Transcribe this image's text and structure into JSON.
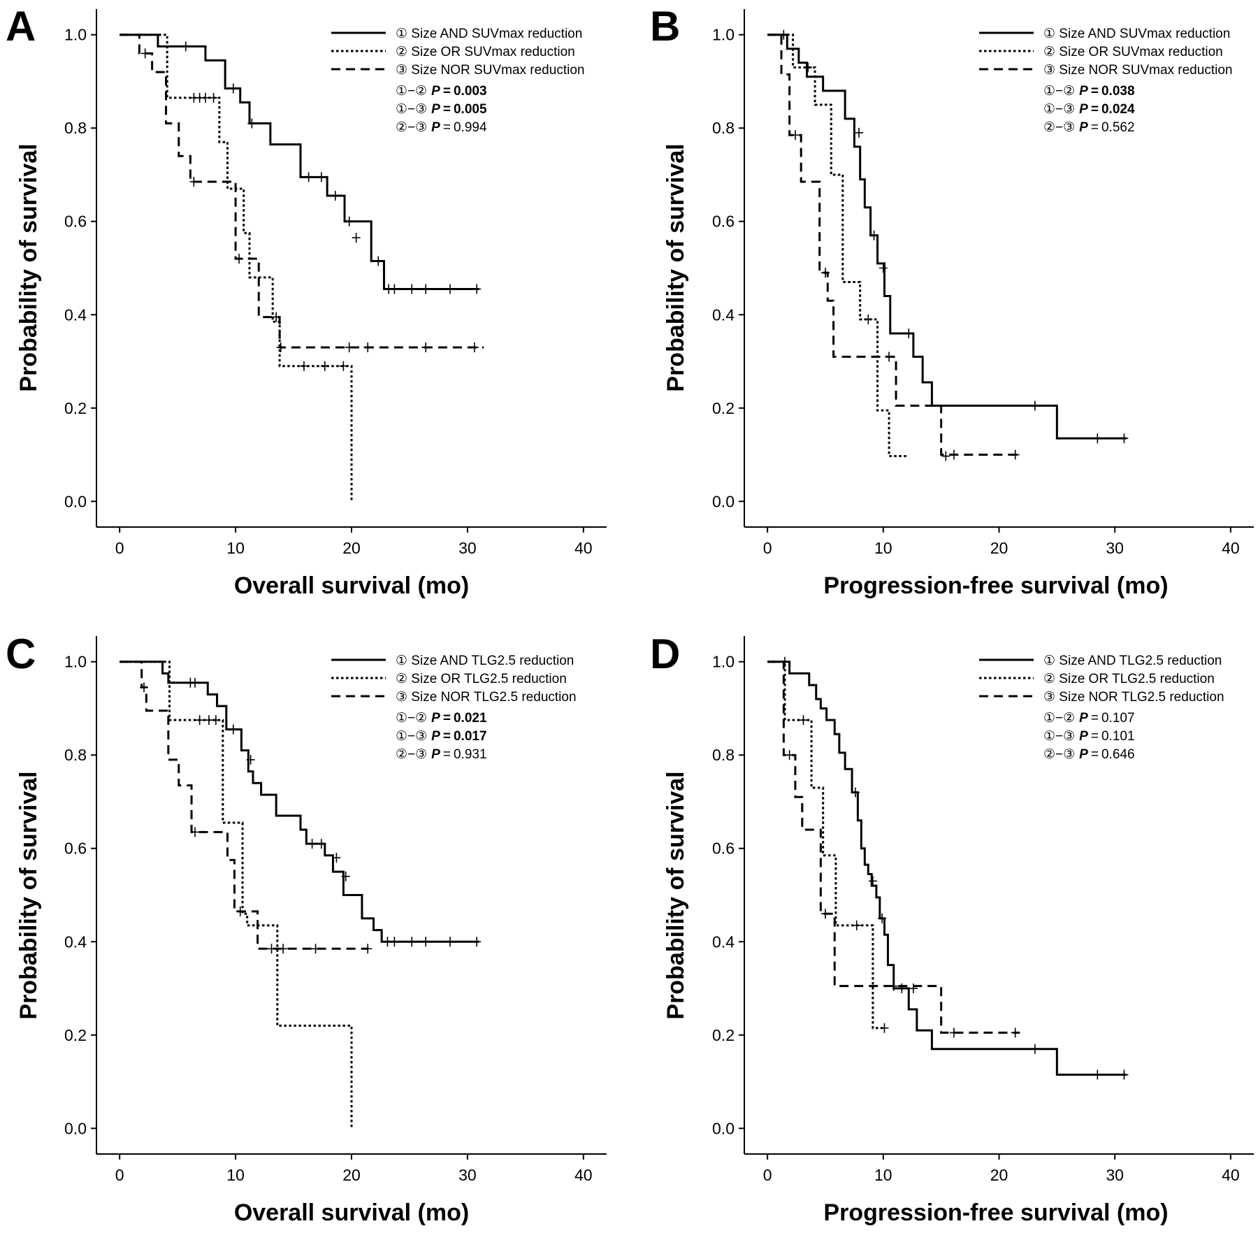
{
  "chart_data": [
    {
      "type": "line",
      "panel": "A",
      "xlabel": "Overall survival (mo)",
      "ylabel": "Probability of survival",
      "xlim": [
        -2,
        42
      ],
      "ylim": [
        -0.055,
        1.055
      ],
      "xticks": [
        "0",
        "10",
        "20",
        "30",
        "40"
      ],
      "yticks": [
        "0.0",
        "0.2",
        "0.4",
        "0.6",
        "0.8",
        "1.0"
      ],
      "legend_position": "top-right",
      "series": [
        {
          "name": "① Size AND SUVmax reduction",
          "style": "solid",
          "x": [
            0,
            3.3,
            7.4,
            9.1,
            10.4,
            11.2,
            13,
            15.6,
            17.9,
            19.4,
            21.7,
            22.8,
            31
          ],
          "y": [
            1.0,
            0.975,
            0.945,
            0.885,
            0.855,
            0.81,
            0.765,
            0.695,
            0.655,
            0.6,
            0.515,
            0.455,
            0.455
          ],
          "censored": [
            [
              5.7,
              0.975
            ],
            [
              9.8,
              0.885
            ],
            [
              11.4,
              0.81
            ],
            [
              16.3,
              0.695
            ],
            [
              17.4,
              0.695
            ],
            [
              18.6,
              0.655
            ],
            [
              19.8,
              0.6
            ],
            [
              20.4,
              0.565
            ],
            [
              22.3,
              0.515
            ],
            [
              23.2,
              0.455
            ],
            [
              23.7,
              0.455
            ],
            [
              25.2,
              0.455
            ],
            [
              26.4,
              0.455
            ],
            [
              28.5,
              0.455
            ],
            [
              30.8,
              0.455
            ]
          ]
        },
        {
          "name": "② Size OR SUVmax reduction",
          "style": "dotted",
          "x": [
            0,
            3.9,
            4.1,
            8.6,
            9.3,
            10.7,
            11.2,
            13.2,
            13.8,
            20,
            20
          ],
          "y": [
            1.0,
            1.0,
            0.865,
            0.77,
            0.67,
            0.575,
            0.48,
            0.385,
            0.29,
            0.29,
            0.0
          ],
          "censored": [
            [
              6.4,
              0.865
            ],
            [
              6.9,
              0.865
            ],
            [
              7.4,
              0.865
            ],
            [
              8.1,
              0.865
            ],
            [
              15.9,
              0.29
            ],
            [
              17.7,
              0.29
            ],
            [
              19.3,
              0.29
            ]
          ]
        },
        {
          "name": "③ Size NOR SUVmax reduction",
          "style": "dashed",
          "x": [
            0,
            1.7,
            2.8,
            4,
            5.1,
            6.1,
            10,
            12,
            13.8,
            31.4
          ],
          "y": [
            1.0,
            0.96,
            0.92,
            0.81,
            0.74,
            0.685,
            0.52,
            0.395,
            0.33,
            0.33
          ],
          "censored": [
            [
              2.2,
              0.96
            ],
            [
              6.4,
              0.685
            ],
            [
              10.3,
              0.52
            ],
            [
              13.5,
              0.395
            ],
            [
              13.9,
              0.33
            ],
            [
              19.8,
              0.33
            ],
            [
              21.4,
              0.33
            ],
            [
              26.4,
              0.33
            ],
            [
              30.6,
              0.33
            ]
          ]
        }
      ],
      "pvalues": [
        {
          "pair": "①−②",
          "label": "P",
          "value": "0.003",
          "significant": true
        },
        {
          "pair": "①−③",
          "label": "P",
          "value": "0.005",
          "significant": true
        },
        {
          "pair": "②−③",
          "label": "P",
          "value": "0.994",
          "significant": false
        }
      ]
    },
    {
      "type": "line",
      "panel": "B",
      "xlabel": "Progression-free survival (mo)",
      "ylabel": "Probability of survival",
      "xlim": [
        -2,
        42
      ],
      "ylim": [
        -0.055,
        1.055
      ],
      "xticks": [
        "0",
        "10",
        "20",
        "30",
        "40"
      ],
      "yticks": [
        "0.0",
        "0.2",
        "0.4",
        "0.6",
        "0.8",
        "1.0"
      ],
      "legend_position": "top-right",
      "series": [
        {
          "name": "① Size AND SUVmax reduction",
          "style": "solid",
          "x": [
            0,
            1.7,
            2.7,
            3.4,
            4.8,
            6.7,
            7.5,
            8.0,
            8.4,
            8.9,
            9.5,
            10.1,
            10.6,
            11.6,
            12.6,
            13.4,
            14.2,
            25,
            31
          ],
          "y": [
            1.0,
            0.97,
            0.94,
            0.91,
            0.88,
            0.82,
            0.76,
            0.69,
            0.63,
            0.57,
            0.51,
            0.44,
            0.36,
            0.36,
            0.31,
            0.255,
            0.205,
            0.135,
            0.135
          ],
          "censored": [
            [
              1.4,
              1.0
            ],
            [
              7.9,
              0.79
            ],
            [
              9.2,
              0.57
            ],
            [
              10.0,
              0.5
            ],
            [
              12.2,
              0.36
            ],
            [
              23.1,
              0.205
            ],
            [
              28.5,
              0.135
            ],
            [
              30.8,
              0.135
            ]
          ]
        },
        {
          "name": "② Size OR SUVmax reduction",
          "style": "dotted",
          "x": [
            0,
            2.2,
            4.1,
            5.5,
            6.5,
            8,
            9.5,
            10.5,
            12
          ],
          "y": [
            1.0,
            0.93,
            0.85,
            0.7,
            0.47,
            0.39,
            0.195,
            0.097,
            0.097
          ],
          "censored": [
            [
              3.5,
              0.93
            ],
            [
              8.7,
              0.39
            ],
            [
              15.4,
              0.097
            ]
          ]
        },
        {
          "name": "③ Size NOR SUVmax reduction",
          "style": "dashed",
          "x": [
            0,
            1.2,
            1.9,
            2.9,
            4.5,
            5.2,
            5.7,
            8.1,
            11.1,
            15,
            21.8
          ],
          "y": [
            1.0,
            0.915,
            0.785,
            0.685,
            0.49,
            0.43,
            0.31,
            0.31,
            0.205,
            0.1,
            0.1
          ],
          "censored": [
            [
              2.4,
              0.785
            ],
            [
              5.0,
              0.49
            ],
            [
              10.5,
              0.31
            ],
            [
              16.1,
              0.1
            ],
            [
              21.4,
              0.1
            ]
          ]
        }
      ],
      "pvalues": [
        {
          "pair": "①−②",
          "label": "P",
          "value": "0.038",
          "significant": true
        },
        {
          "pair": "①−③",
          "label": "P",
          "value": "0.024",
          "significant": true
        },
        {
          "pair": "②−③",
          "label": "P",
          "value": "0.562",
          "significant": false
        }
      ]
    },
    {
      "type": "line",
      "panel": "C",
      "xlabel": "Overall survival (mo)",
      "ylabel": "Probability of survival",
      "xlim": [
        -2,
        42
      ],
      "ylim": [
        -0.055,
        1.055
      ],
      "xticks": [
        "0",
        "10",
        "20",
        "30",
        "40"
      ],
      "yticks": [
        "0.0",
        "0.2",
        "0.4",
        "0.6",
        "0.8",
        "1.0"
      ],
      "legend_position": "top-right",
      "series": [
        {
          "name": "① Size AND TLG2.5 reduction",
          "style": "solid",
          "x": [
            0,
            3.7,
            4.2,
            7.6,
            8.4,
            9.2,
            10.5,
            11.1,
            11.5,
            12.2,
            13.5,
            15.6,
            16.1,
            17.7,
            18.4,
            19.3,
            20.9,
            21.9,
            22.6,
            31
          ],
          "y": [
            1.0,
            0.975,
            0.955,
            0.93,
            0.905,
            0.855,
            0.81,
            0.765,
            0.74,
            0.715,
            0.67,
            0.64,
            0.61,
            0.585,
            0.55,
            0.5,
            0.45,
            0.425,
            0.4,
            0.4
          ],
          "censored": [
            [
              6.1,
              0.955
            ],
            [
              6.5,
              0.955
            ],
            [
              9.8,
              0.855
            ],
            [
              11.3,
              0.79
            ],
            [
              16.6,
              0.61
            ],
            [
              17.4,
              0.61
            ],
            [
              18.7,
              0.58
            ],
            [
              19.5,
              0.54
            ],
            [
              23.1,
              0.4
            ],
            [
              23.7,
              0.4
            ],
            [
              25.2,
              0.4
            ],
            [
              26.4,
              0.4
            ],
            [
              28.5,
              0.4
            ],
            [
              30.8,
              0.4
            ]
          ]
        },
        {
          "name": "② Size OR TLG2.5 reduction",
          "style": "dotted",
          "x": [
            0,
            3.5,
            4.3,
            8.9,
            10.6,
            11,
            13.6,
            20,
            20
          ],
          "y": [
            1.0,
            1.0,
            0.875,
            0.655,
            0.46,
            0.435,
            0.22,
            0.22,
            0.0
          ],
          "censored": [
            [
              6.9,
              0.875
            ],
            [
              7.7,
              0.875
            ],
            [
              8.3,
              0.875
            ]
          ]
        },
        {
          "name": "③ Size NOR TLG2.5 reduction",
          "style": "dashed",
          "x": [
            0,
            1.9,
            2.3,
            4.2,
            5.1,
            6.2,
            9.3,
            9.9,
            11.9,
            21.4
          ],
          "y": [
            1.0,
            0.945,
            0.895,
            0.79,
            0.735,
            0.635,
            0.575,
            0.465,
            0.385,
            0.385
          ],
          "censored": [
            [
              2.1,
              0.945
            ],
            [
              6.5,
              0.635
            ],
            [
              10.4,
              0.465
            ],
            [
              13.1,
              0.385
            ],
            [
              14.1,
              0.385
            ],
            [
              16.9,
              0.385
            ],
            [
              21.4,
              0.385
            ]
          ]
        }
      ],
      "pvalues": [
        {
          "pair": "①−②",
          "label": "P",
          "value": "0.021",
          "significant": true
        },
        {
          "pair": "①−③",
          "label": "P",
          "value": "0.017",
          "significant": true
        },
        {
          "pair": "②−③",
          "label": "P",
          "value": "0.931",
          "significant": false
        }
      ]
    },
    {
      "type": "line",
      "panel": "D",
      "xlabel": "Progression-free survival (mo)",
      "ylabel": "Probability of survival",
      "xlim": [
        -2,
        42
      ],
      "ylim": [
        -0.055,
        1.055
      ],
      "xticks": [
        "0",
        "10",
        "20",
        "30",
        "40"
      ],
      "yticks": [
        "0.0",
        "0.2",
        "0.4",
        "0.6",
        "0.8",
        "1.0"
      ],
      "legend_position": "top-right",
      "series": [
        {
          "name": "① Size AND TLG2.5 reduction",
          "style": "solid",
          "x": [
            0,
            1.9,
            3.6,
            4.2,
            4.6,
            5.1,
            5.8,
            6.2,
            6.7,
            7.3,
            7.8,
            8.1,
            8.4,
            8.7,
            9.0,
            9.4,
            9.7,
            10.1,
            10.4,
            10.9,
            12.2,
            12.9,
            14.2,
            25,
            31
          ],
          "y": [
            1.0,
            0.975,
            0.95,
            0.92,
            0.9,
            0.875,
            0.845,
            0.805,
            0.77,
            0.72,
            0.66,
            0.6,
            0.565,
            0.545,
            0.52,
            0.495,
            0.45,
            0.415,
            0.35,
            0.3,
            0.255,
            0.21,
            0.17,
            0.115,
            0.115
          ],
          "censored": [
            [
              1.5,
              1.0
            ],
            [
              7.6,
              0.72
            ],
            [
              9.1,
              0.53
            ],
            [
              9.9,
              0.45
            ],
            [
              11.6,
              0.3
            ],
            [
              12.6,
              0.3
            ],
            [
              23.1,
              0.17
            ],
            [
              28.5,
              0.115
            ],
            [
              30.8,
              0.115
            ]
          ]
        },
        {
          "name": "② Size OR TLG2.5 reduction",
          "style": "dotted",
          "x": [
            0,
            1.5,
            3.8,
            4.8,
            5.9,
            9.1,
            10.1
          ],
          "y": [
            1.0,
            0.875,
            0.73,
            0.585,
            0.435,
            0.215,
            0.215
          ],
          "censored": [
            [
              3.1,
              0.875
            ],
            [
              7.7,
              0.435
            ],
            [
              10.1,
              0.215
            ]
          ]
        },
        {
          "name": "③ Size NOR TLG2.5 reduction",
          "style": "dashed",
          "x": [
            0,
            1.4,
            2.4,
            3.0,
            4.6,
            5.8,
            15,
            21.8
          ],
          "y": [
            1.0,
            0.8,
            0.71,
            0.64,
            0.46,
            0.305,
            0.205,
            0.205
          ],
          "censored": [
            [
              1.9,
              0.8
            ],
            [
              5.0,
              0.46
            ],
            [
              10.9,
              0.305
            ],
            [
              16.1,
              0.205
            ],
            [
              21.4,
              0.205
            ]
          ]
        }
      ],
      "pvalues": [
        {
          "pair": "①−②",
          "label": "P",
          "value": "0.107",
          "significant": false
        },
        {
          "pair": "①−③",
          "label": "P",
          "value": "0.101",
          "significant": false
        },
        {
          "pair": "②−③",
          "label": "P",
          "value": "0.646",
          "significant": false
        }
      ]
    }
  ]
}
